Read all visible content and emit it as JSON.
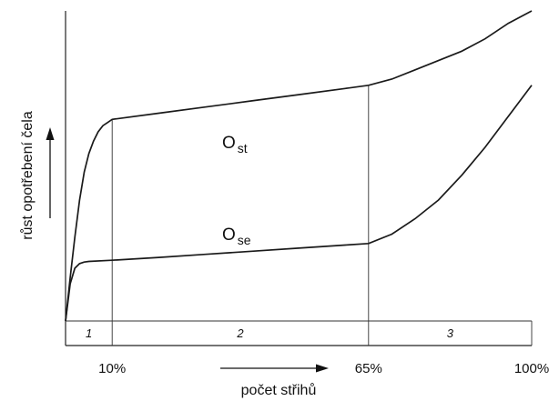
{
  "chart_data": {
    "type": "line",
    "xlabel": "počet střihů",
    "ylabel": "růst opotřebení čela",
    "x_ticks": [
      "10%",
      "65%",
      "100%"
    ],
    "x_tick_values": [
      10,
      65,
      100
    ],
    "xlim": [
      0,
      100
    ],
    "ylim": [
      0,
      100
    ],
    "grid": false,
    "series": [
      {
        "name": "O",
        "subscript": "st",
        "points": [
          [
            0,
            0
          ],
          [
            1,
            14
          ],
          [
            2,
            27
          ],
          [
            3,
            39
          ],
          [
            4,
            48
          ],
          [
            5,
            54
          ],
          [
            6,
            58
          ],
          [
            7,
            61
          ],
          [
            8,
            63
          ],
          [
            9,
            64
          ],
          [
            10,
            65
          ],
          [
            20,
            67
          ],
          [
            30,
            69
          ],
          [
            40,
            71
          ],
          [
            50,
            73
          ],
          [
            60,
            75
          ],
          [
            65,
            76
          ],
          [
            70,
            78
          ],
          [
            75,
            81
          ],
          [
            80,
            84
          ],
          [
            85,
            87
          ],
          [
            90,
            91
          ],
          [
            95,
            96
          ],
          [
            100,
            100
          ]
        ]
      },
      {
        "name": "O",
        "subscript": "se",
        "points": [
          [
            0,
            0
          ],
          [
            1,
            12
          ],
          [
            2,
            17
          ],
          [
            3,
            18.5
          ],
          [
            4,
            19
          ],
          [
            5,
            19.2
          ],
          [
            10,
            19.6
          ],
          [
            20,
            20.5
          ],
          [
            30,
            21.5
          ],
          [
            40,
            22.5
          ],
          [
            50,
            23.5
          ],
          [
            60,
            24.5
          ],
          [
            65,
            25
          ],
          [
            70,
            28
          ],
          [
            75,
            33
          ],
          [
            80,
            39
          ],
          [
            85,
            47
          ],
          [
            90,
            56
          ],
          [
            95,
            66
          ],
          [
            100,
            76
          ]
        ]
      }
    ],
    "regions": [
      {
        "label": "1",
        "from": 0,
        "to": 10
      },
      {
        "label": "2",
        "from": 10,
        "to": 65
      },
      {
        "label": "3",
        "from": 65,
        "to": 100
      }
    ]
  }
}
